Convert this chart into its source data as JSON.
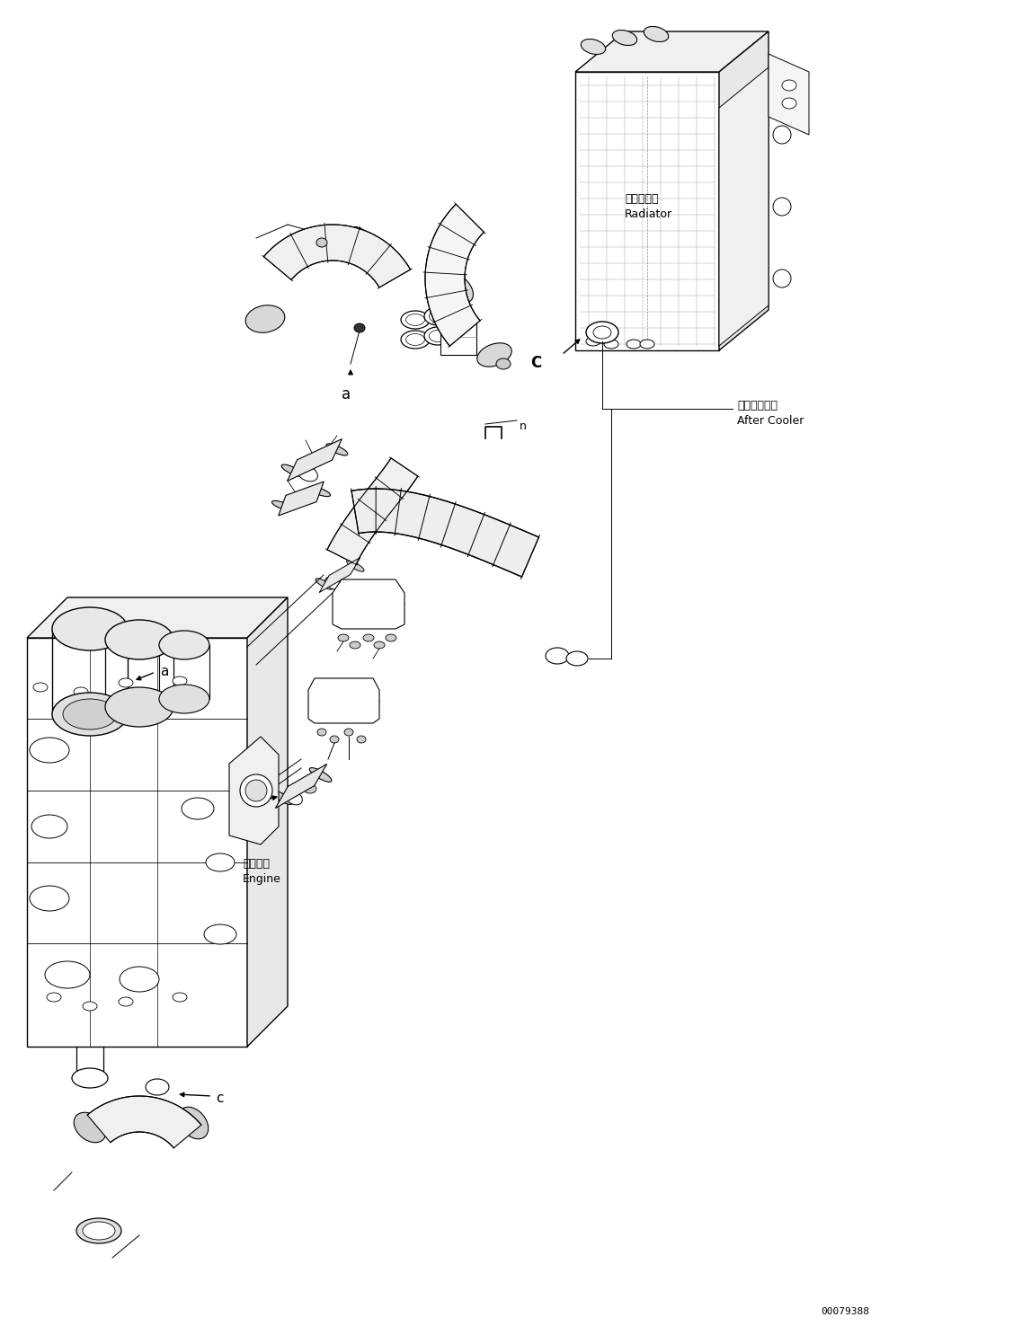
{
  "bg_color": "#ffffff",
  "line_color": "#000000",
  "fig_width": 11.37,
  "fig_height": 14.86,
  "dpi": 100,
  "part_number": "00079388",
  "labels": {
    "radiator_jp": "ラジエータ",
    "radiator_en": "Radiator",
    "aftercooler_jp": "アフタクーラ",
    "aftercooler_en": "After Cooler",
    "engine_jp": "エンジン",
    "engine_en": "Engine"
  }
}
